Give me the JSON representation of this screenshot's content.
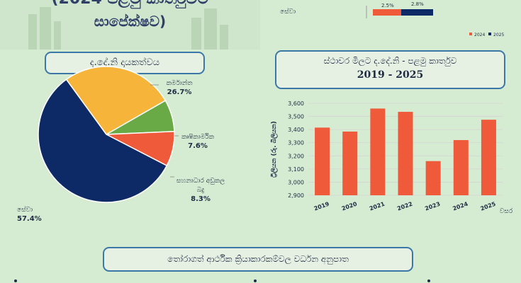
{
  "header": {
    "title_line1": "(2024 පළමු කාර්තුවට",
    "title_line2": "සාපේක්ෂව)"
  },
  "top_chart": {
    "category": "සේවා",
    "value_2024": "2.5%",
    "value_2025": "2.8%",
    "legend": [
      "2024",
      "2025"
    ],
    "colors": {
      "2024": "#ee5a3a",
      "2025": "#0d2a66"
    }
  },
  "pie_panel": {
    "title": "ද.දේ.නි දායකත්වය"
  },
  "bar_panel": {
    "title_line1": "ස්ථාවර මිලට ද.දේ.නි - පළමු කාර්තුව",
    "title_line2": "2019 - 2025"
  },
  "bottom_panel": {
    "title": "තෝරාගත් ආර්ථික ක්‍රියාකාරකම්වල වර්ධන අනුපාත"
  },
  "chart_data": [
    {
      "type": "pie",
      "title": "ද.දේ.නි දායකත්වය",
      "slices": [
        {
          "label": "කර්මාන්ත",
          "value": 26.7,
          "value_label": "26.7%",
          "color": "#f7b43a"
        },
        {
          "label": "කෘෂිකාර්මික",
          "value": 7.6,
          "value_label": "7.6%",
          "color": "#6aaa46"
        },
        {
          "label": "සහනාධාර අඩුකල බදු",
          "label_lines": [
            "සහනාධාර අඩුකල",
            "බදු"
          ],
          "value": 8.3,
          "value_label": "8.3%",
          "color": "#ee5a3a"
        },
        {
          "label": "සේවා",
          "value": 57.4,
          "value_label": "57.4%",
          "color": "#0d2a66"
        }
      ]
    },
    {
      "type": "bar",
      "title": "ස්ථාවර මිලට ද.දේ.නි - පළමු කාර්තුව",
      "subtitle": "2019 - 2025",
      "categories": [
        "2019",
        "2020",
        "2021",
        "2022",
        "2023",
        "2024",
        "2025"
      ],
      "values": [
        3415,
        3385,
        3560,
        3535,
        3160,
        3320,
        3475
      ],
      "ylabel": "ට්‍රිලියන (රු. බිලියන)",
      "xlabel": "වසර",
      "ylim": [
        2900,
        3600
      ],
      "yticks": [
        "2,900",
        "3,000",
        "3,100",
        "3,200",
        "3,300",
        "3,400",
        "3,500",
        "3,600"
      ],
      "color": "#ee5a3a",
      "grid": true
    }
  ]
}
